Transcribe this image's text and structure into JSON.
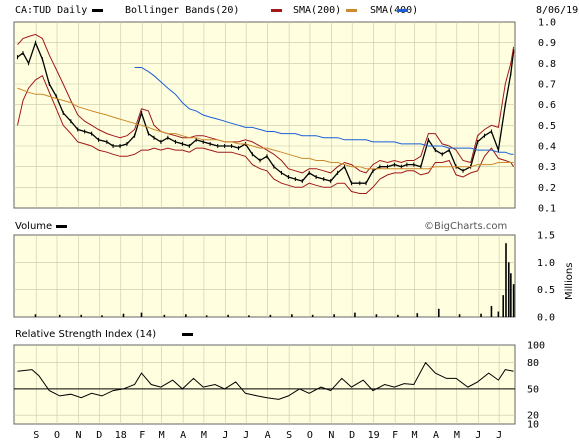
{
  "header": {
    "symbol_label": "CA:TUD Daily",
    "legend": [
      {
        "label": "Bollinger Bands(20)",
        "color": "#a01818"
      },
      {
        "label": "SMA(200)",
        "color": "#cc8b2a"
      },
      {
        "label": "SMA(400)",
        "color": "#1a5fd6"
      }
    ],
    "date": "8/06/19"
  },
  "watermark": "©BigCharts.com",
  "chart_data": [
    {
      "type": "line",
      "panel": "price",
      "title": "CA:TUD Daily",
      "ylim": [
        0.1,
        1.0
      ],
      "y_ticks": [
        "1.0",
        "0.9",
        "0.8",
        "0.7",
        "0.6",
        "0.5",
        "0.4",
        "0.3",
        "0.2",
        "0.1"
      ],
      "x": [
        "2017-08-20",
        "2017-08-28",
        "2017-09-05",
        "2017-09-15",
        "2017-09-25",
        "2017-10-05",
        "2017-10-15",
        "2017-10-25",
        "2017-11-05",
        "2017-11-15",
        "2017-11-25",
        "2017-12-05",
        "2017-12-15",
        "2017-12-27",
        "2018-01-05",
        "2018-01-15",
        "2018-01-25",
        "2018-02-05",
        "2018-02-15",
        "2018-02-25",
        "2018-03-05",
        "2018-03-15",
        "2018-03-25",
        "2018-04-05",
        "2018-04-15",
        "2018-04-25",
        "2018-05-05",
        "2018-05-15",
        "2018-05-25",
        "2018-06-05",
        "2018-06-15",
        "2018-06-25",
        "2018-07-05",
        "2018-07-15",
        "2018-07-25",
        "2018-08-05",
        "2018-08-15",
        "2018-08-25",
        "2018-09-05",
        "2018-09-15",
        "2018-09-25",
        "2018-10-05",
        "2018-10-15",
        "2018-10-25",
        "2018-11-05",
        "2018-11-15",
        "2018-11-25",
        "2018-12-05",
        "2018-12-15",
        "2018-12-27",
        "2019-01-05",
        "2019-01-15",
        "2019-01-25",
        "2019-02-05",
        "2019-02-15",
        "2019-02-25",
        "2019-03-05",
        "2019-03-15",
        "2019-03-25",
        "2019-04-05",
        "2019-04-15",
        "2019-04-25",
        "2019-05-05",
        "2019-05-15",
        "2019-05-25",
        "2019-06-05",
        "2019-06-15",
        "2019-06-25",
        "2019-07-05",
        "2019-07-15",
        "2019-07-25",
        "2019-08-02",
        "2019-08-06"
      ],
      "series": [
        {
          "name": "CA:TUD",
          "color": "#000000",
          "values": [
            0.83,
            0.85,
            0.8,
            0.9,
            0.82,
            0.7,
            0.64,
            0.56,
            0.52,
            0.48,
            0.47,
            0.46,
            0.43,
            0.42,
            0.4,
            0.4,
            0.41,
            0.45,
            0.56,
            0.46,
            0.44,
            0.42,
            0.44,
            0.42,
            0.41,
            0.4,
            0.43,
            0.42,
            0.41,
            0.4,
            0.4,
            0.4,
            0.39,
            0.41,
            0.36,
            0.33,
            0.35,
            0.3,
            0.27,
            0.25,
            0.24,
            0.23,
            0.27,
            0.25,
            0.24,
            0.23,
            0.27,
            0.3,
            0.22,
            0.22,
            0.22,
            0.28,
            0.3,
            0.3,
            0.31,
            0.3,
            0.31,
            0.31,
            0.3,
            0.43,
            0.38,
            0.36,
            0.38,
            0.3,
            0.28,
            0.3,
            0.42,
            0.45,
            0.47,
            0.38,
            0.6,
            0.75,
            0.86
          ]
        },
        {
          "name": "Bollinger Bands(20) upper",
          "color": "#a01818",
          "values": [
            0.89,
            0.92,
            0.93,
            0.94,
            0.92,
            0.84,
            0.77,
            0.7,
            0.62,
            0.55,
            0.52,
            0.5,
            0.48,
            0.46,
            0.45,
            0.44,
            0.45,
            0.48,
            0.58,
            0.57,
            0.5,
            0.47,
            0.46,
            0.45,
            0.44,
            0.44,
            0.45,
            0.45,
            0.44,
            0.43,
            0.42,
            0.42,
            0.42,
            0.43,
            0.42,
            0.4,
            0.38,
            0.36,
            0.33,
            0.29,
            0.28,
            0.27,
            0.29,
            0.29,
            0.28,
            0.27,
            0.3,
            0.32,
            0.31,
            0.28,
            0.27,
            0.31,
            0.33,
            0.32,
            0.33,
            0.32,
            0.33,
            0.33,
            0.35,
            0.46,
            0.46,
            0.41,
            0.4,
            0.38,
            0.33,
            0.32,
            0.45,
            0.48,
            0.5,
            0.49,
            0.7,
            0.8,
            0.88
          ]
        },
        {
          "name": "Bollinger Bands(20) lower",
          "color": "#a01818",
          "values": [
            0.5,
            0.62,
            0.68,
            0.72,
            0.74,
            0.66,
            0.58,
            0.5,
            0.46,
            0.42,
            0.41,
            0.4,
            0.38,
            0.37,
            0.36,
            0.35,
            0.35,
            0.36,
            0.38,
            0.38,
            0.39,
            0.38,
            0.39,
            0.38,
            0.38,
            0.37,
            0.39,
            0.39,
            0.38,
            0.37,
            0.37,
            0.37,
            0.36,
            0.35,
            0.31,
            0.29,
            0.28,
            0.24,
            0.22,
            0.21,
            0.2,
            0.2,
            0.22,
            0.21,
            0.2,
            0.2,
            0.22,
            0.22,
            0.18,
            0.17,
            0.17,
            0.2,
            0.24,
            0.26,
            0.27,
            0.27,
            0.28,
            0.28,
            0.26,
            0.27,
            0.32,
            0.32,
            0.33,
            0.26,
            0.25,
            0.27,
            0.28,
            0.35,
            0.39,
            0.34,
            0.33,
            0.32,
            0.3
          ]
        },
        {
          "name": "SMA(200)",
          "color": "#cc8b2a",
          "values": [
            0.68,
            0.67,
            0.66,
            0.65,
            0.65,
            0.64,
            0.63,
            0.62,
            0.61,
            0.59,
            0.58,
            0.57,
            0.56,
            0.55,
            0.54,
            0.53,
            0.52,
            0.51,
            0.5,
            0.49,
            0.48,
            0.47,
            0.46,
            0.46,
            0.45,
            0.44,
            0.44,
            0.43,
            0.43,
            0.43,
            0.42,
            0.42,
            0.41,
            0.41,
            0.4,
            0.39,
            0.39,
            0.38,
            0.37,
            0.36,
            0.35,
            0.34,
            0.34,
            0.33,
            0.33,
            0.32,
            0.32,
            0.31,
            0.3,
            0.3,
            0.29,
            0.29,
            0.29,
            0.29,
            0.29,
            0.29,
            0.29,
            0.29,
            0.29,
            0.29,
            0.3,
            0.3,
            0.3,
            0.3,
            0.3,
            0.3,
            0.31,
            0.31,
            0.31,
            0.32,
            0.32,
            0.32,
            0.32
          ]
        },
        {
          "name": "SMA(400)",
          "color": "#1a5fd6",
          "values": [
            null,
            null,
            null,
            null,
            null,
            null,
            null,
            null,
            null,
            null,
            null,
            null,
            null,
            null,
            null,
            null,
            null,
            0.78,
            0.78,
            0.76,
            0.74,
            0.71,
            0.68,
            0.65,
            0.61,
            0.58,
            0.57,
            0.55,
            0.54,
            0.53,
            0.52,
            0.51,
            0.5,
            0.49,
            0.49,
            0.48,
            0.47,
            0.47,
            0.46,
            0.46,
            0.46,
            0.45,
            0.45,
            0.45,
            0.44,
            0.44,
            0.44,
            0.43,
            0.43,
            0.43,
            0.43,
            0.42,
            0.42,
            0.42,
            0.42,
            0.41,
            0.41,
            0.41,
            0.41,
            0.4,
            0.4,
            0.4,
            0.39,
            0.39,
            0.39,
            0.39,
            0.38,
            0.38,
            0.38,
            0.37,
            0.37,
            0.36,
            0.36
          ]
        }
      ]
    },
    {
      "type": "bar",
      "panel": "volume",
      "title": "Volume",
      "ylabel": "Millions",
      "ylim": [
        0,
        1.5
      ],
      "y_ticks": [
        "1.5",
        "1.0",
        "0.5",
        "0.0"
      ],
      "x": [
        "2017-09-15",
        "2017-10-20",
        "2017-11-20",
        "2017-12-20",
        "2018-01-20",
        "2018-02-15",
        "2018-03-20",
        "2018-04-20",
        "2018-05-20",
        "2018-06-20",
        "2018-07-20",
        "2018-08-20",
        "2018-09-20",
        "2018-10-20",
        "2018-11-20",
        "2018-12-20",
        "2019-01-20",
        "2019-02-20",
        "2019-03-20",
        "2019-04-20",
        "2019-05-20",
        "2019-06-20",
        "2019-07-05",
        "2019-07-15",
        "2019-07-22",
        "2019-07-26",
        "2019-07-30",
        "2019-08-02",
        "2019-08-06"
      ],
      "values": [
        0.05,
        0.04,
        0.04,
        0.03,
        0.06,
        0.08,
        0.04,
        0.05,
        0.03,
        0.04,
        0.03,
        0.04,
        0.05,
        0.04,
        0.05,
        0.08,
        0.05,
        0.04,
        0.07,
        0.15,
        0.05,
        0.06,
        0.2,
        0.1,
        0.4,
        1.35,
        1.0,
        0.8,
        0.6
      ],
      "color": "#000000"
    },
    {
      "type": "line",
      "panel": "rsi",
      "title": "Relative Strength Index (14)",
      "ylim": [
        10,
        100
      ],
      "y_ticks": [
        "100",
        "80",
        "50",
        "20",
        "10"
      ],
      "reference_line": 50,
      "x": [
        "2017-08-20",
        "2017-09-10",
        "2017-09-20",
        "2017-10-05",
        "2017-10-20",
        "2017-11-05",
        "2017-11-20",
        "2017-12-05",
        "2017-12-20",
        "2018-01-05",
        "2018-01-20",
        "2018-02-05",
        "2018-02-15",
        "2018-03-01",
        "2018-03-15",
        "2018-04-01",
        "2018-04-15",
        "2018-05-01",
        "2018-05-15",
        "2018-06-01",
        "2018-06-15",
        "2018-07-01",
        "2018-07-15",
        "2018-08-01",
        "2018-08-15",
        "2018-09-01",
        "2018-09-15",
        "2018-10-01",
        "2018-10-15",
        "2018-11-01",
        "2018-11-15",
        "2018-12-01",
        "2018-12-15",
        "2019-01-01",
        "2019-01-15",
        "2019-02-01",
        "2019-02-15",
        "2019-03-01",
        "2019-03-15",
        "2019-04-01",
        "2019-04-15",
        "2019-05-01",
        "2019-05-15",
        "2019-06-01",
        "2019-06-15",
        "2019-07-01",
        "2019-07-15",
        "2019-07-25",
        "2019-08-06"
      ],
      "values": [
        70,
        72,
        65,
        48,
        42,
        44,
        40,
        45,
        42,
        48,
        50,
        55,
        68,
        55,
        52,
        60,
        50,
        62,
        52,
        55,
        50,
        58,
        45,
        42,
        40,
        38,
        42,
        50,
        45,
        52,
        48,
        62,
        52,
        60,
        48,
        55,
        52,
        56,
        55,
        80,
        68,
        62,
        62,
        52,
        58,
        68,
        60,
        72,
        70
      ]
    }
  ],
  "x_axis": {
    "labels": [
      "S",
      "O",
      "N",
      "D",
      "18",
      "F",
      "M",
      "A",
      "M",
      "J",
      "J",
      "A",
      "S",
      "O",
      "N",
      "D",
      "19",
      "F",
      "M",
      "A",
      "M",
      "J",
      "J"
    ]
  }
}
